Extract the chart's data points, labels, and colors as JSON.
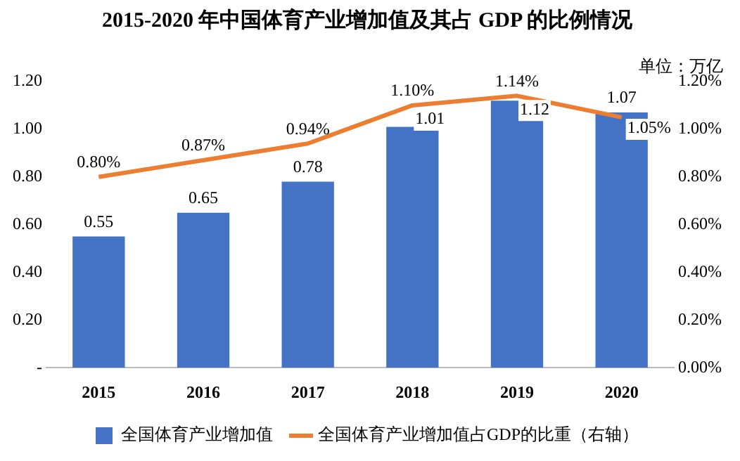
{
  "chart_data": {
    "type": "bar",
    "title": "2015-2020 年中国体育产业增加值及其占 GDP 的比例情况",
    "annotations": [
      "单位：万亿"
    ],
    "categories": [
      "2015",
      "2016",
      "2017",
      "2018",
      "2019",
      "2020"
    ],
    "series": [
      {
        "name": "全国体育产业增加值",
        "color": "#4472c4",
        "values": [
          0.55,
          0.65,
          0.78,
          1.01,
          1.12,
          1.07
        ],
        "value_labels": [
          "0.55",
          "0.65",
          "0.78",
          "1.01",
          "1.12",
          "1.07"
        ]
      },
      {
        "name": "全国体育产业增加值占GDP的比重（右轴）",
        "type": "line",
        "axis": "y2",
        "color": "#ed7d31",
        "values": [
          0.8,
          0.87,
          0.94,
          1.1,
          1.14,
          1.05
        ],
        "value_labels": [
          "0.80%",
          "0.87%",
          "0.94%",
          "1.10%",
          "1.14%",
          "1.05%"
        ]
      }
    ],
    "ylim": [
      0,
      1.2
    ],
    "yticks": [
      {
        "value": 0,
        "label": "-"
      },
      {
        "value": 0.2,
        "label": "0.20"
      },
      {
        "value": 0.4,
        "label": "0.40"
      },
      {
        "value": 0.6,
        "label": "0.60"
      },
      {
        "value": 0.8,
        "label": "0.80"
      },
      {
        "value": 1.0,
        "label": "1.00"
      },
      {
        "value": 1.2,
        "label": "1.20"
      }
    ],
    "y2lim": [
      0,
      1.2
    ],
    "y2ticks": [
      {
        "value": 0,
        "label": "0.00%"
      },
      {
        "value": 0.2,
        "label": "0.20%"
      },
      {
        "value": 0.4,
        "label": "0.40%"
      },
      {
        "value": 0.6,
        "label": "0.60%"
      },
      {
        "value": 0.8,
        "label": "0.80%"
      },
      {
        "value": 1.0,
        "label": "1.00%"
      },
      {
        "value": 1.2,
        "label": "1.20%"
      }
    ],
    "grid": false,
    "legend": "bottom",
    "marker": "none",
    "line_style": "solid"
  }
}
